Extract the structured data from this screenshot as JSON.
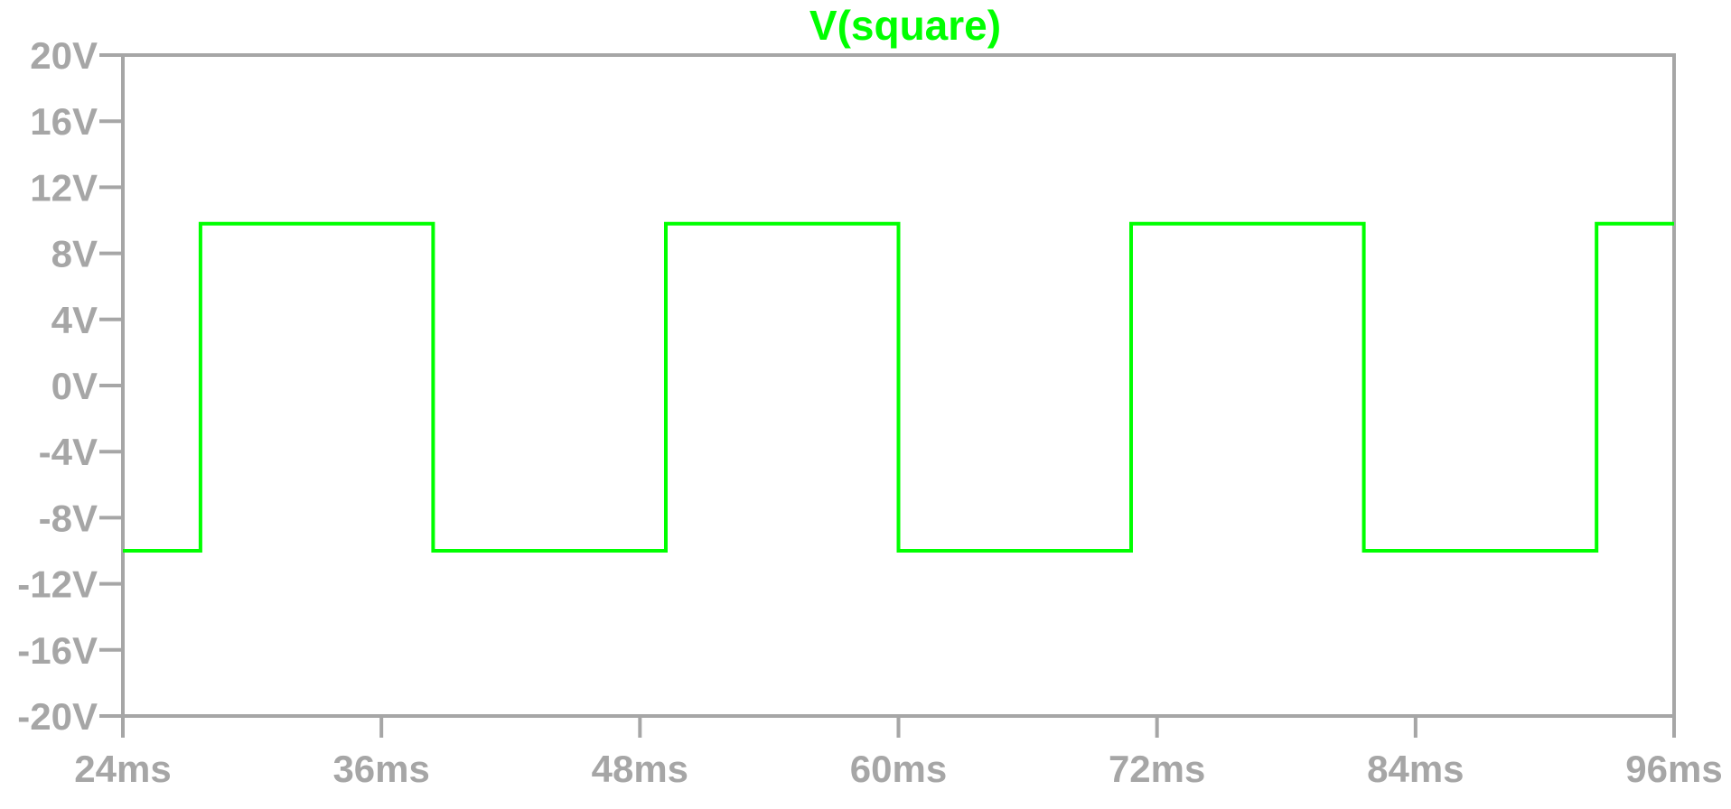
{
  "chart_data": {
    "type": "line",
    "title": "V(square)",
    "xlabel": "",
    "ylabel": "",
    "xlim": [
      24,
      96
    ],
    "ylim": [
      -20,
      20
    ],
    "x_unit": "ms",
    "y_unit": "V",
    "x_ticks": [
      "24ms",
      "36ms",
      "48ms",
      "60ms",
      "72ms",
      "84ms",
      "96ms"
    ],
    "y_ticks": [
      "20V",
      "16V",
      "12V",
      "8V",
      "4V",
      "0V",
      "-4V",
      "-8V",
      "-12V",
      "-16V",
      "-20V"
    ],
    "grid": false,
    "colors": {
      "series": "#00ff00",
      "axis": "#a6a6a6",
      "title": "#00ff00",
      "background": "#ffffff"
    },
    "series": [
      {
        "name": "V(square)",
        "x": [
          24,
          27.6,
          27.6,
          38.4,
          38.4,
          49.2,
          49.2,
          60.0,
          60.0,
          70.8,
          70.8,
          81.6,
          81.6,
          92.4,
          92.4,
          96
        ],
        "y": [
          -10,
          -10,
          9.8,
          9.8,
          -10,
          -10,
          9.8,
          9.8,
          -10,
          -10,
          9.8,
          9.8,
          -10,
          -10,
          9.8,
          9.8
        ]
      }
    ]
  }
}
